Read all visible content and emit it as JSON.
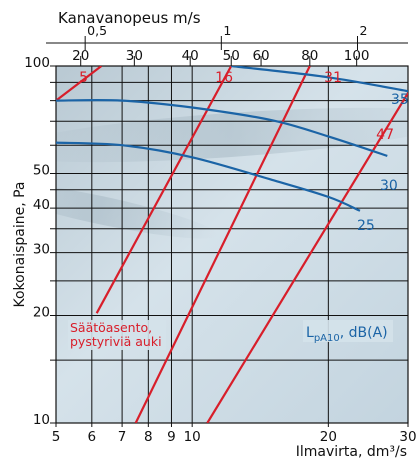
{
  "chart_data": {
    "type": "line",
    "top_axis_title": "Kanavanopeus m/s",
    "x_axis_title": "Ilmavirta, dm³/s",
    "y_axis_title": "Kokonaispaine, Pa",
    "x_scale": "log",
    "y_scale": "log",
    "xlim": [
      5,
      30
    ],
    "ylim": [
      10,
      100
    ],
    "x_ticks": [
      {
        "value": 5,
        "label": "5"
      },
      {
        "value": 6,
        "label": "6"
      },
      {
        "value": 7,
        "label": "7"
      },
      {
        "value": 8,
        "label": "8"
      },
      {
        "value": 9,
        "label": "9"
      },
      {
        "value": 10,
        "label": "10"
      },
      {
        "value": 20,
        "label": "20"
      },
      {
        "value": 30,
        "label": "30"
      }
    ],
    "x_gridlines": [
      5,
      6,
      7,
      8,
      9,
      10,
      20,
      30
    ],
    "y_ticks": [
      {
        "value": 10,
        "label": "10"
      },
      {
        "value": 20,
        "label": "20"
      },
      {
        "value": 30,
        "label": "30"
      },
      {
        "value": 40,
        "label": "40"
      },
      {
        "value": 50,
        "label": "50"
      },
      {
        "value": 100,
        "label": "100"
      }
    ],
    "y_gridlines": [
      10,
      15,
      20,
      25,
      30,
      35,
      40,
      45,
      50,
      60,
      70,
      80,
      90,
      100
    ],
    "top_velocity_ticks": [
      {
        "value": 0.5,
        "label": "0,5",
        "x_equiv": 5.8
      },
      {
        "value": 1,
        "label": "1",
        "x_equiv": 11.6
      },
      {
        "value": 2,
        "label": "2",
        "x_equiv": 23.2
      }
    ],
    "top_secondary_labels": [
      {
        "value": 20,
        "label": "20",
        "x_equiv": 5.67
      },
      {
        "value": 30,
        "label": "30",
        "x_equiv": 7.45
      },
      {
        "value": 40,
        "label": "40",
        "x_equiv": 9.9
      },
      {
        "value": 50,
        "label": "50",
        "x_equiv": 12.2
      },
      {
        "value": 60,
        "label": "60",
        "x_equiv": 14.2
      },
      {
        "value": 80,
        "label": "80",
        "x_equiv": 18.2
      },
      {
        "value": 100,
        "label": "100",
        "x_equiv": 23.1
      }
    ],
    "damper_position_label": [
      "Säätöasento,",
      "pystyriviä auki"
    ],
    "damper_lines": [
      {
        "label": "5",
        "points": [
          [
            5,
            80
          ],
          [
            6.3,
            100
          ]
        ]
      },
      {
        "label": "16",
        "points": [
          [
            6.15,
            20.3
          ],
          [
            12.2,
            100
          ]
        ]
      },
      {
        "label": "31",
        "points": [
          [
            7.5,
            10
          ],
          [
            18.2,
            100
          ]
        ]
      },
      {
        "label": "47",
        "points": [
          [
            10.8,
            10
          ],
          [
            30,
            84
          ]
        ]
      }
    ],
    "sound_label": {
      "main": "L",
      "sub": "pA10",
      "unit": ", dB(A)"
    },
    "sound_curves": [
      {
        "label": "35",
        "points": [
          [
            12.2,
            100
          ],
          [
            20,
            93
          ],
          [
            30,
            85
          ]
        ]
      },
      {
        "label": "30",
        "points": [
          [
            5,
            80
          ],
          [
            7,
            80
          ],
          [
            10,
            76.5
          ],
          [
            15,
            70.5
          ],
          [
            20,
            63.5
          ],
          [
            27,
            56
          ]
        ]
      },
      {
        "label": "25",
        "points": [
          [
            5,
            61
          ],
          [
            7,
            60
          ],
          [
            10,
            55.5
          ],
          [
            15,
            48
          ],
          [
            20,
            43
          ],
          [
            23.5,
            39.3
          ]
        ]
      }
    ],
    "colors": {
      "damper": "#d81e2a",
      "sound": "#1b64a6",
      "grid": "#111111",
      "background": "#c6d7e1"
    }
  }
}
